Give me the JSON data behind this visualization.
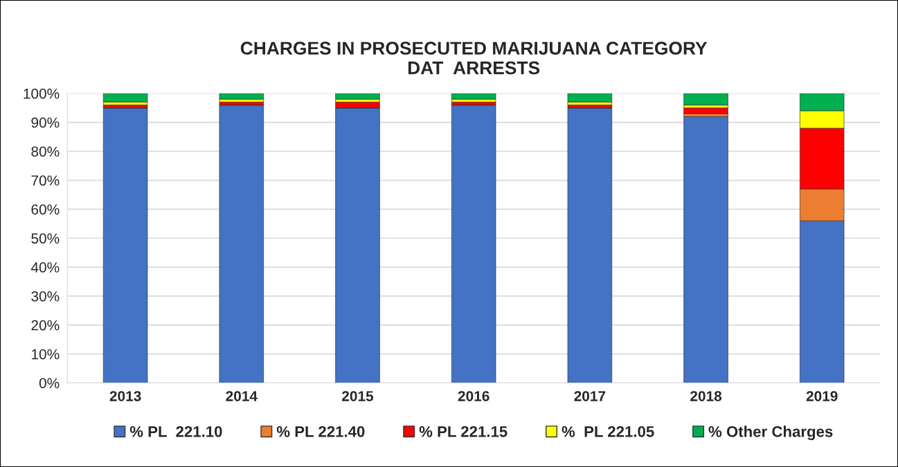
{
  "chart_data": {
    "type": "bar",
    "title": "CHARGES IN PROSECUTED MARIJUANA CATEGORY\nDAT  ARRESTS",
    "stacked": true,
    "categories": [
      "2013",
      "2014",
      "2015",
      "2016",
      "2017",
      "2018",
      "2019"
    ],
    "series": [
      {
        "name": "% PL  221.10",
        "color": "#4472c4",
        "values": [
          95,
          96,
          95,
          96,
          95,
          92,
          56
        ]
      },
      {
        "name": "% PL 221.40",
        "color": "#ed7d31",
        "values": [
          0,
          0,
          0,
          0,
          0,
          1,
          11
        ]
      },
      {
        "name": "% PL 221.15",
        "color": "#ff0000",
        "values": [
          1,
          1,
          2,
          1,
          1,
          2,
          21
        ]
      },
      {
        "name": "%  PL 221.05",
        "color": "#ffff00",
        "values": [
          1,
          1,
          1,
          1,
          1,
          1,
          6
        ]
      },
      {
        "name": "% Other Charges",
        "color": "#00b050",
        "values": [
          3,
          2,
          2,
          2,
          3,
          4,
          6
        ]
      }
    ],
    "ylim": [
      0,
      100
    ],
    "yticks": [
      {
        "value": 0,
        "label": "0%"
      },
      {
        "value": 10,
        "label": "10%"
      },
      {
        "value": 20,
        "label": "20%"
      },
      {
        "value": 30,
        "label": "30%"
      },
      {
        "value": 40,
        "label": "40%"
      },
      {
        "value": 50,
        "label": "50%"
      },
      {
        "value": 60,
        "label": "60%"
      },
      {
        "value": 70,
        "label": "70%"
      },
      {
        "value": 80,
        "label": "80%"
      },
      {
        "value": 90,
        "label": "90%"
      },
      {
        "value": 100,
        "label": "100%"
      }
    ],
    "grid": "y",
    "legend": "bottom"
  }
}
